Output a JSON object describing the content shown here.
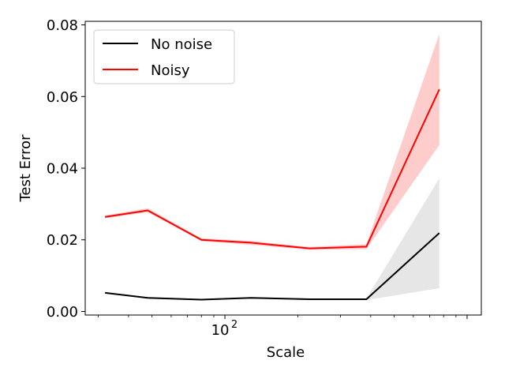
{
  "chart_data": {
    "type": "line",
    "xlabel": "Scale",
    "ylabel": "Test Error",
    "xscale": "log",
    "xlim": [
      26.5,
      1145
    ],
    "ylim": [
      -0.001,
      0.081
    ],
    "grid": false,
    "legend_position": "top-left",
    "x": [
      32,
      48,
      80,
      128,
      224,
      384,
      768
    ],
    "x_tick_labels": [
      {
        "value": 100,
        "base": "10",
        "exp": "2"
      }
    ],
    "y_ticks": [
      0.0,
      0.02,
      0.04,
      0.06,
      0.08
    ],
    "y_tick_labels": [
      "0.00",
      "0.02",
      "0.04",
      "0.06",
      "0.08"
    ],
    "series": [
      {
        "name": "No noise",
        "color": "#000000",
        "band_color": "#808080",
        "values": [
          0.0052,
          0.0038,
          0.0033,
          0.0038,
          0.0034,
          0.0034,
          0.0219
        ],
        "lower": [
          0.005,
          0.0036,
          0.0031,
          0.0036,
          0.0032,
          0.0032,
          0.0065
        ],
        "upper": [
          0.0054,
          0.004,
          0.0035,
          0.004,
          0.0036,
          0.0036,
          0.0372
        ]
      },
      {
        "name": "Noisy",
        "color": "#ff0000",
        "band_color": "#ff0000",
        "values": [
          0.0264,
          0.0282,
          0.02,
          0.0192,
          0.0176,
          0.0181,
          0.062
        ],
        "lower": [
          0.026,
          0.0277,
          0.0196,
          0.0186,
          0.0172,
          0.0174,
          0.0465
        ],
        "upper": [
          0.0268,
          0.0288,
          0.0204,
          0.0197,
          0.018,
          0.0188,
          0.0775
        ]
      }
    ]
  }
}
